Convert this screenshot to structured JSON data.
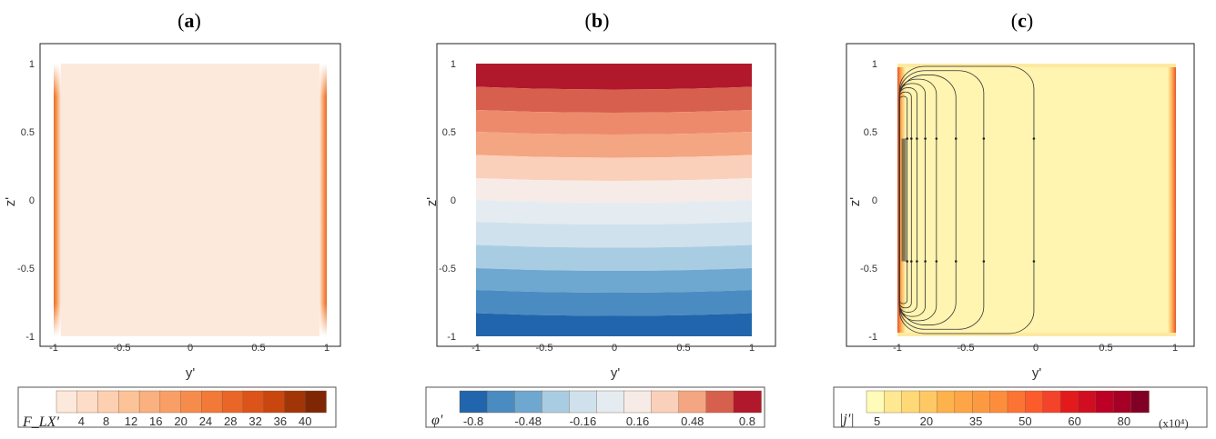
{
  "chart_data": [
    {
      "type": "heatmap",
      "panel_label": "a",
      "xlabel": "y'",
      "ylabel": "z'",
      "xlim": [
        -1,
        1
      ],
      "ylim": [
        -1,
        1
      ],
      "xticks": [
        "-1",
        "-0.5",
        "0",
        "0.5",
        "1"
      ],
      "yticks": [
        "1",
        "0.5",
        "0",
        "-0.5",
        "-1"
      ],
      "field": "interior ~2 (lowest level), rising to ~40 in thin layers at y' = -1 and y' = 1",
      "colorbar": {
        "title": "F_LX'",
        "levels": [
          2,
          4,
          6,
          8,
          10,
          12,
          14,
          16,
          18,
          20,
          22,
          24,
          26,
          28,
          30,
          32,
          34,
          36,
          38,
          40
        ],
        "tick_labels": [
          "4",
          "8",
          "12",
          "16",
          "20",
          "24",
          "28",
          "32",
          "36",
          "40"
        ],
        "colors": [
          "#fde9dc",
          "#fdddc7",
          "#fdd0b1",
          "#fcc399",
          "#fbb07f",
          "#f99f66",
          "#f68c4c",
          "#f27937",
          "#ea6628",
          "#dc5419",
          "#c9460e",
          "#a23508",
          "#7f2704"
        ]
      }
    },
    {
      "type": "heatmap",
      "panel_label": "b",
      "xlabel": "y'",
      "ylabel": "z'",
      "xlim": [
        -1,
        1
      ],
      "ylim": [
        -1,
        1
      ],
      "xticks": [
        "-1",
        "-0.5",
        "0",
        "0.5",
        "1"
      ],
      "yticks": [
        "1",
        "0.5",
        "0",
        "-0.5",
        "-1"
      ],
      "field": "horizontal bands, phi' increasing linearly from about -0.9 at z' = -1 to about 0.9 at z' = 1",
      "bands": [
        {
          "from": 0.83,
          "to": 1.0,
          "color": "#b2182b"
        },
        {
          "from": 0.66,
          "to": 0.83,
          "color": "#d6604d"
        },
        {
          "from": 0.5,
          "to": 0.66,
          "color": "#ed8a6c"
        },
        {
          "from": 0.33,
          "to": 0.5,
          "color": "#f4a582"
        },
        {
          "from": 0.16,
          "to": 0.33,
          "color": "#fbd0bb"
        },
        {
          "from": 0.0,
          "to": 0.16,
          "color": "#f6ebe6"
        },
        {
          "from": -0.16,
          "to": 0.0,
          "color": "#e4ecf1"
        },
        {
          "from": -0.33,
          "to": -0.16,
          "color": "#cfe1ec"
        },
        {
          "from": -0.5,
          "to": -0.33,
          "color": "#a8cde3"
        },
        {
          "from": -0.66,
          "to": -0.5,
          "color": "#6ea7d0"
        },
        {
          "from": -0.83,
          "to": -0.66,
          "color": "#4a8cc2"
        },
        {
          "from": -1.0,
          "to": -0.83,
          "color": "#2166ac"
        }
      ],
      "colorbar": {
        "title": "φ'",
        "levels": [
          -0.8,
          -0.64,
          -0.48,
          -0.32,
          -0.16,
          0,
          0.16,
          0.32,
          0.48,
          0.64,
          0.8
        ],
        "tick_labels": [
          "-0.8",
          "-0.48",
          "-0.16",
          "0.16",
          "0.48",
          "0.8"
        ],
        "colors": [
          "#2166ac",
          "#4a8cc2",
          "#6ea7d0",
          "#a8cde3",
          "#cfe1ec",
          "#e4ecf1",
          "#f6ebe6",
          "#fbd0bb",
          "#f4a582",
          "#d6604d",
          "#b2182b"
        ]
      }
    },
    {
      "type": "heatmap",
      "panel_label": "c",
      "xlabel": "y'",
      "ylabel": "z'",
      "xlim": [
        -1,
        1
      ],
      "ylim": [
        -1,
        1
      ],
      "xticks": [
        "-1",
        "-0.5",
        "0",
        "0.5",
        "1"
      ],
      "yticks": [
        "1",
        "0.5",
        "0",
        "-0.5",
        "-1"
      ],
      "field": "|j'| near the lowest level over most of the section, peaking in thin layers at y' = -1 and y' = 1; closed current streamlines concentrated near y' = -1",
      "streamlines_right_edge_y": [
        -0.02,
        -0.38,
        -0.58,
        -0.72,
        -0.8,
        -0.86,
        -0.9,
        -0.93
      ],
      "colorbar": {
        "title": "|j'|",
        "unit": "(x10⁴)",
        "levels": [
          0,
          5,
          10,
          15,
          20,
          25,
          30,
          35,
          40,
          45,
          50,
          55,
          60,
          65,
          70,
          75,
          80
        ],
        "tick_labels": [
          "5",
          "20",
          "35",
          "50",
          "60",
          "80"
        ],
        "colors": [
          "#fffbb8",
          "#fee891",
          "#fed976",
          "#fec965",
          "#feb24c",
          "#fea647",
          "#fd9a41",
          "#fd8d3c",
          "#fc7434",
          "#fc5b2c",
          "#f3432a",
          "#e31a1c",
          "#d00d21",
          "#bd0026",
          "#a50026",
          "#800026"
        ]
      }
    }
  ]
}
